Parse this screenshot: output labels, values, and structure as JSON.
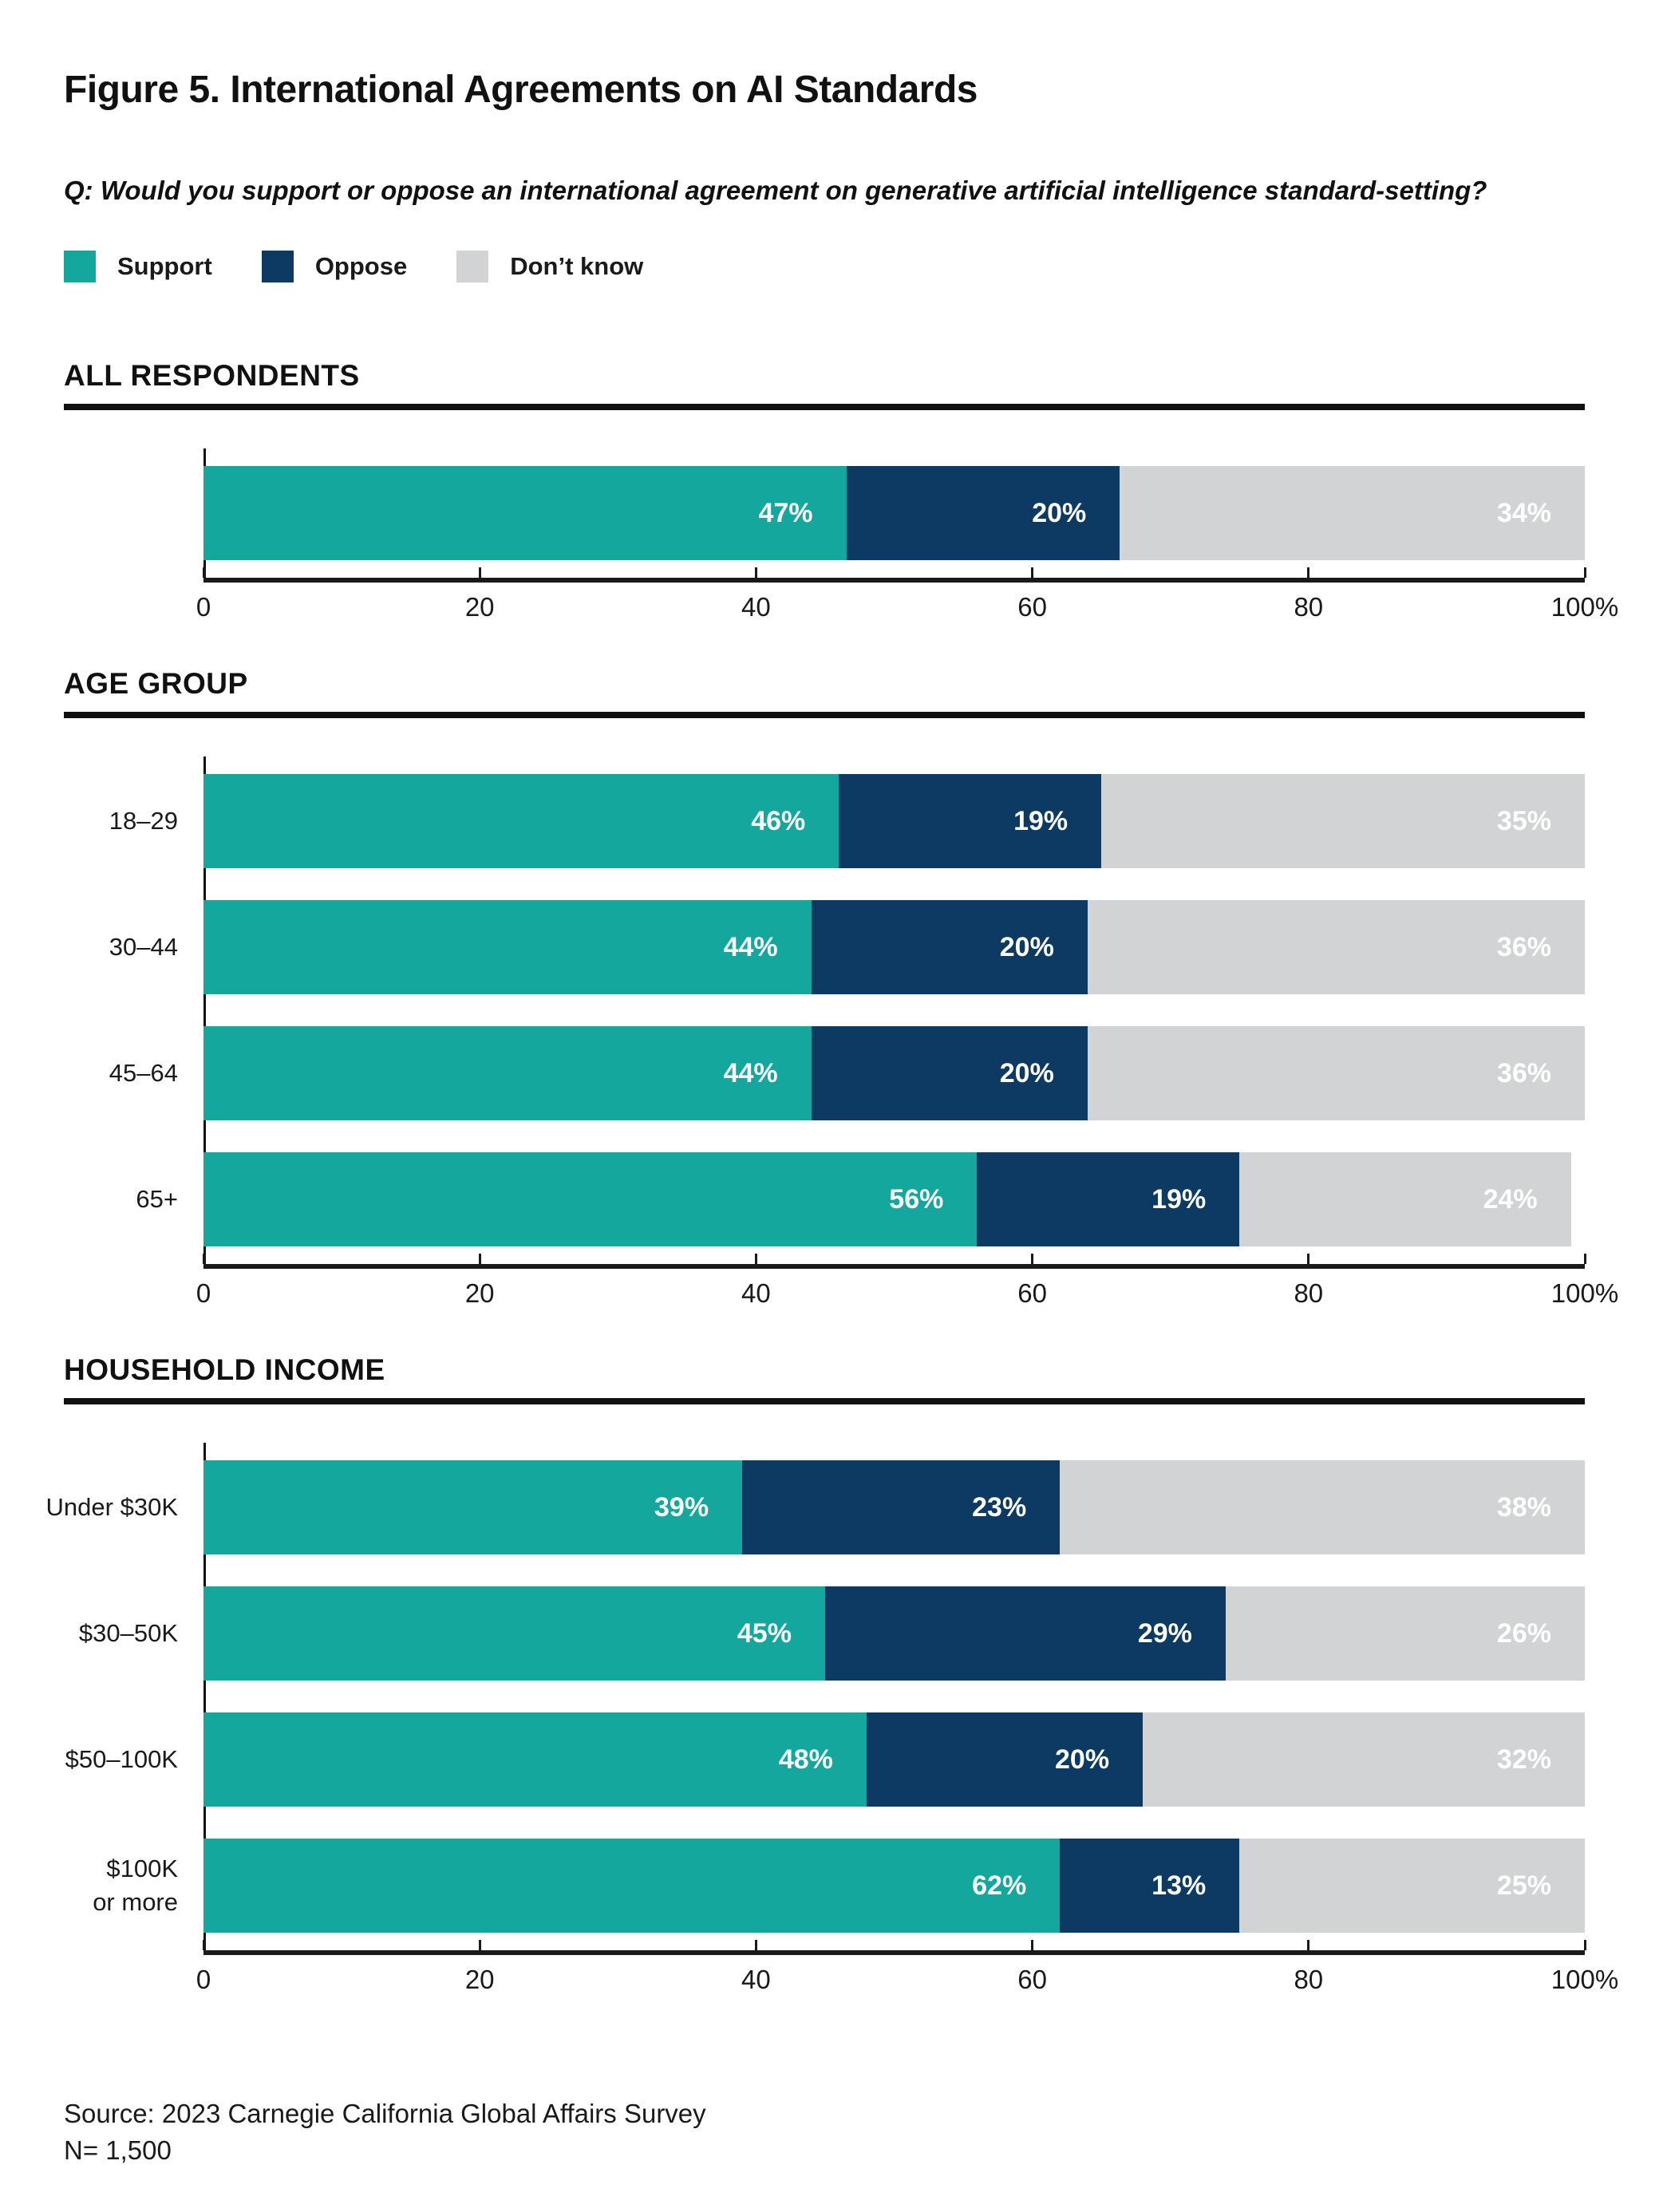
{
  "figure": {
    "title": "Figure 5. International Agreements on AI Standards",
    "question": "Q: Would you support or oppose an international agreement on generative artificial intelligence standard-setting?",
    "source": "Source: 2023 Carnegie California Global Affairs Survey",
    "n": "N= 1,500"
  },
  "colors": {
    "support": "#14A79E",
    "oppose": "#0C3A62",
    "dont_know": "#D2D3D4",
    "text": "#1A1A1A",
    "axis": "#1A1A1A",
    "bar_value_label": "#FFFFFF"
  },
  "legend": [
    {
      "label": "Support",
      "color": "#14A79E"
    },
    {
      "label": "Oppose",
      "color": "#0C3A62"
    },
    {
      "label": "Don’t know",
      "color": "#D2D3D4"
    }
  ],
  "axis": {
    "tick_values": [
      0,
      20,
      40,
      60,
      80,
      100
    ],
    "tick_labels": [
      "0",
      "20",
      "40",
      "60",
      "80",
      "100%"
    ],
    "xlim": [
      0,
      100
    ],
    "grid": false
  },
  "chart_data": [
    {
      "type": "bar",
      "orientation": "horizontal",
      "stacked": true,
      "section": "ALL RESPONDENTS",
      "categories": [
        ""
      ],
      "series": [
        {
          "name": "Support",
          "values": [
            47
          ]
        },
        {
          "name": "Oppose",
          "values": [
            20
          ]
        },
        {
          "name": "Don’t know",
          "values": [
            34
          ]
        }
      ],
      "xlim": [
        0,
        100
      ]
    },
    {
      "type": "bar",
      "orientation": "horizontal",
      "stacked": true,
      "section": "AGE GROUP",
      "categories": [
        "18–29",
        "30–44",
        "45–64",
        "65+"
      ],
      "series": [
        {
          "name": "Support",
          "values": [
            46,
            44,
            44,
            56
          ]
        },
        {
          "name": "Oppose",
          "values": [
            19,
            20,
            20,
            19
          ]
        },
        {
          "name": "Don’t know",
          "values": [
            35,
            36,
            36,
            24
          ]
        }
      ],
      "xlim": [
        0,
        100
      ]
    },
    {
      "type": "bar",
      "orientation": "horizontal",
      "stacked": true,
      "section": "HOUSEHOLD INCOME",
      "categories": [
        "Under $30K",
        "$30–50K",
        "$50–100K",
        "$100K\nor more"
      ],
      "series": [
        {
          "name": "Support",
          "values": [
            39,
            45,
            48,
            62
          ]
        },
        {
          "name": "Oppose",
          "values": [
            23,
            29,
            20,
            13
          ]
        },
        {
          "name": "Don’t know",
          "values": [
            38,
            26,
            32,
            25
          ]
        }
      ],
      "xlim": [
        0,
        100
      ]
    }
  ]
}
